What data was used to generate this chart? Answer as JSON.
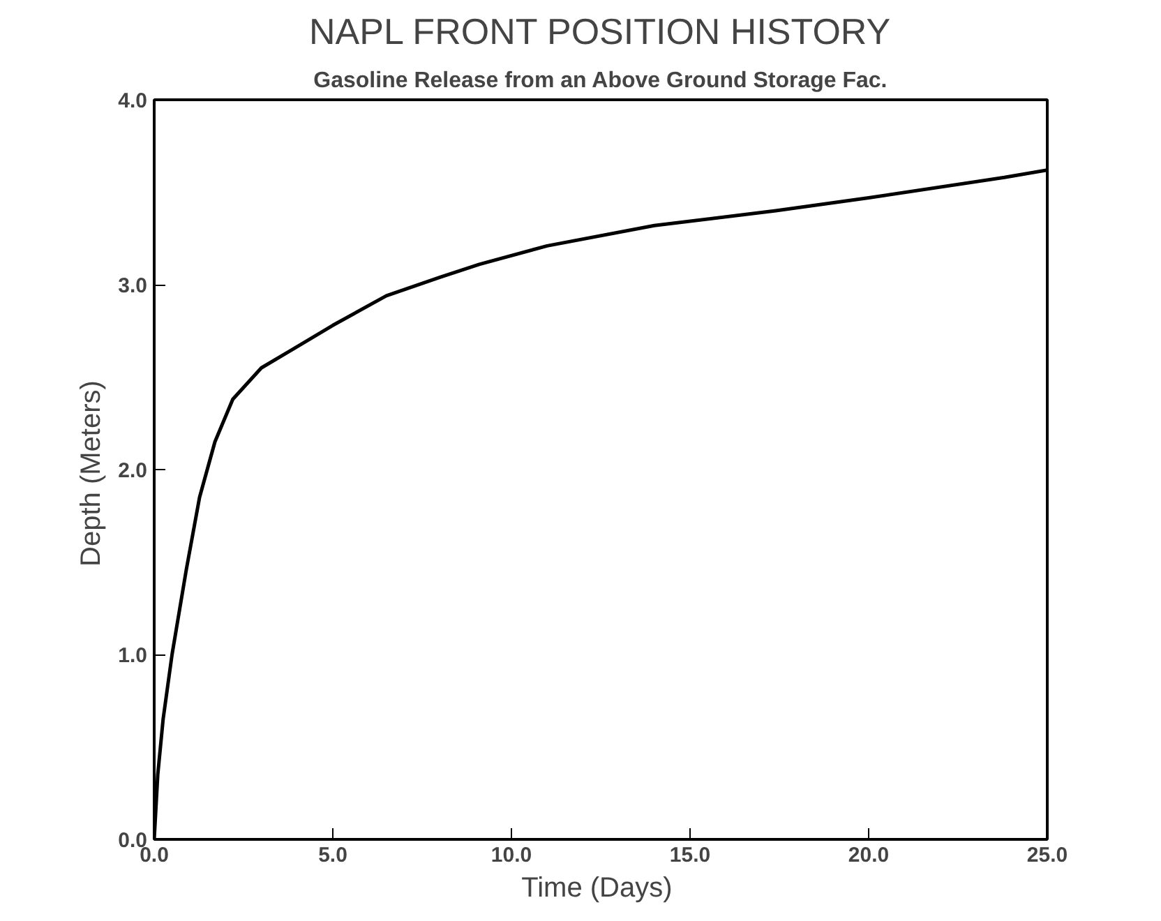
{
  "chart_data": {
    "type": "line",
    "title": "NAPL FRONT POSITION HISTORY",
    "subtitle": "Gasoline Release from an Above Ground Storage Fac.",
    "xlabel": "Time  (Days)",
    "ylabel": "Depth  (Meters)",
    "x": [
      0,
      0.1,
      0.25,
      0.5,
      0.9,
      1.27,
      1.7,
      2.2,
      3.0,
      3.96,
      5,
      6.5,
      8,
      9.1,
      11,
      14,
      17.4,
      20,
      23.8,
      25
    ],
    "series": [
      {
        "color": "#000000",
        "values": [
          0,
          0.35,
          0.65,
          1.0,
          1.46,
          1.85,
          2.15,
          2.38,
          2.55,
          2.66,
          2.78,
          2.94,
          3.04,
          3.11,
          3.21,
          3.32,
          3.4,
          3.47,
          3.58,
          3.62
        ]
      }
    ],
    "xlim": [
      0,
      25
    ],
    "ylim": [
      0,
      4
    ],
    "xticks": [
      {
        "value": 0,
        "label": "0.0"
      },
      {
        "value": 5,
        "label": "5.0"
      },
      {
        "value": 10,
        "label": "10.0"
      },
      {
        "value": 15,
        "label": "15.0"
      },
      {
        "value": 20,
        "label": "20.0"
      },
      {
        "value": 25,
        "label": "25.0"
      }
    ],
    "yticks": [
      {
        "value": 0,
        "label": "0.0"
      },
      {
        "value": 1,
        "label": "1.0"
      },
      {
        "value": 2,
        "label": "2.0"
      },
      {
        "value": 3,
        "label": "3.0"
      },
      {
        "value": 4,
        "label": "4.0"
      }
    ],
    "grid": false,
    "marker": "none",
    "line_style": "solid"
  }
}
